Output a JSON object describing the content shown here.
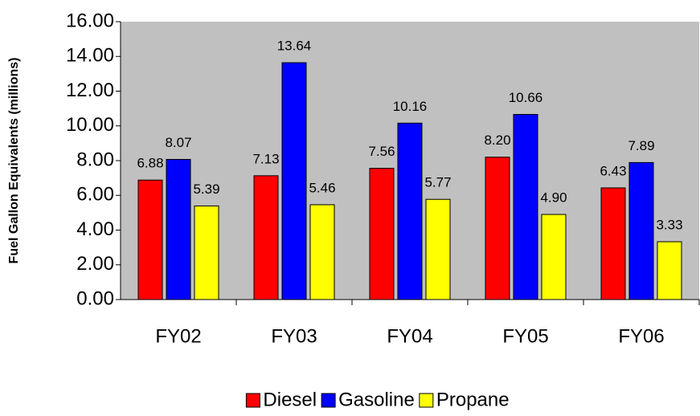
{
  "chart_data": {
    "type": "bar",
    "y_label": "Fuel Gallon Equivalents (millions)",
    "categories": [
      "FY02",
      "FY03",
      "FY04",
      "FY05",
      "FY06"
    ],
    "series": [
      {
        "name": "Diesel",
        "color": "#ff0000",
        "values": [
          6.88,
          7.13,
          7.56,
          8.2,
          6.43
        ],
        "value_labels": [
          "6.88",
          "7.13",
          "7.56",
          "8.20",
          "6.43"
        ]
      },
      {
        "name": "Gasoline",
        "color": "#0000ff",
        "values": [
          8.07,
          13.64,
          10.16,
          10.66,
          7.89
        ],
        "value_labels": [
          "8.07",
          "13.64",
          "10.16",
          "10.66",
          "7.89"
        ]
      },
      {
        "name": "Propane",
        "color": "#ffff00",
        "values": [
          5.39,
          5.46,
          5.77,
          4.9,
          3.33
        ],
        "value_labels": [
          "5.39",
          "5.46",
          "5.77",
          "4.90",
          "3.33"
        ]
      }
    ],
    "ylim": [
      0,
      16
    ],
    "yticks": [
      {
        "value": 0,
        "label": "0.00"
      },
      {
        "value": 2,
        "label": "2.00"
      },
      {
        "value": 4,
        "label": "4.00"
      },
      {
        "value": 6,
        "label": "6.00"
      },
      {
        "value": 8,
        "label": "8.00"
      },
      {
        "value": 10,
        "label": "10.00"
      },
      {
        "value": 12,
        "label": "12.00"
      },
      {
        "value": 14,
        "label": "14.00"
      },
      {
        "value": 16,
        "label": "16.00"
      }
    ],
    "plot_background": "#c0c0c0",
    "legend": "bottom"
  }
}
